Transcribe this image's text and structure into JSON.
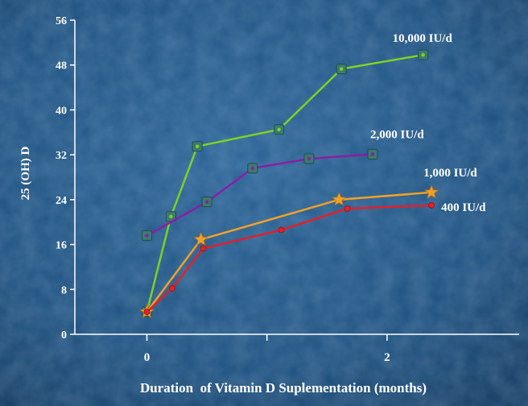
{
  "chart_data": {
    "type": "line",
    "title": "",
    "xlabel": "Duration  of Vitamin D Suplementation (months)",
    "ylabel": "25 (OH) D",
    "xlim": [
      -0.6,
      3.1
    ],
    "ylim": [
      0,
      56
    ],
    "y_ticks": [
      0,
      8,
      16,
      24,
      32,
      40,
      48,
      56
    ],
    "x_ticks": [
      0,
      2
    ],
    "x_minor_ticks": [
      1
    ],
    "grid": false,
    "legend": "none (series labeled inline at line ends)",
    "background_color": "#1d4f7d",
    "series": [
      {
        "name": "10,000 IU/d",
        "color": "#7dd321",
        "marker": "square",
        "x": [
          0.0,
          0.2,
          0.42,
          1.1,
          1.62,
          2.3
        ],
        "y": [
          4,
          21,
          33.5,
          36.5,
          47.3,
          49.8
        ]
      },
      {
        "name": "2,000 IU/d",
        "color": "#8b1ea6",
        "marker": "square",
        "x": [
          0.0,
          0.5,
          0.88,
          1.35,
          1.88
        ],
        "y": [
          17.6,
          23.6,
          29.6,
          31.3,
          32.1
        ]
      },
      {
        "name": "1,000 IU/d",
        "color": "#f0a02a",
        "marker": "star",
        "x": [
          0.0,
          0.45,
          1.6,
          2.37
        ],
        "y": [
          4,
          16.9,
          24,
          25.3
        ]
      },
      {
        "name": "400 IU/d",
        "color": "#e3202a",
        "marker": "dot",
        "x": [
          0.0,
          0.21,
          0.47,
          1.12,
          1.67,
          2.37
        ],
        "y": [
          4,
          8.2,
          15.3,
          18.6,
          22.4,
          23
        ]
      }
    ]
  }
}
